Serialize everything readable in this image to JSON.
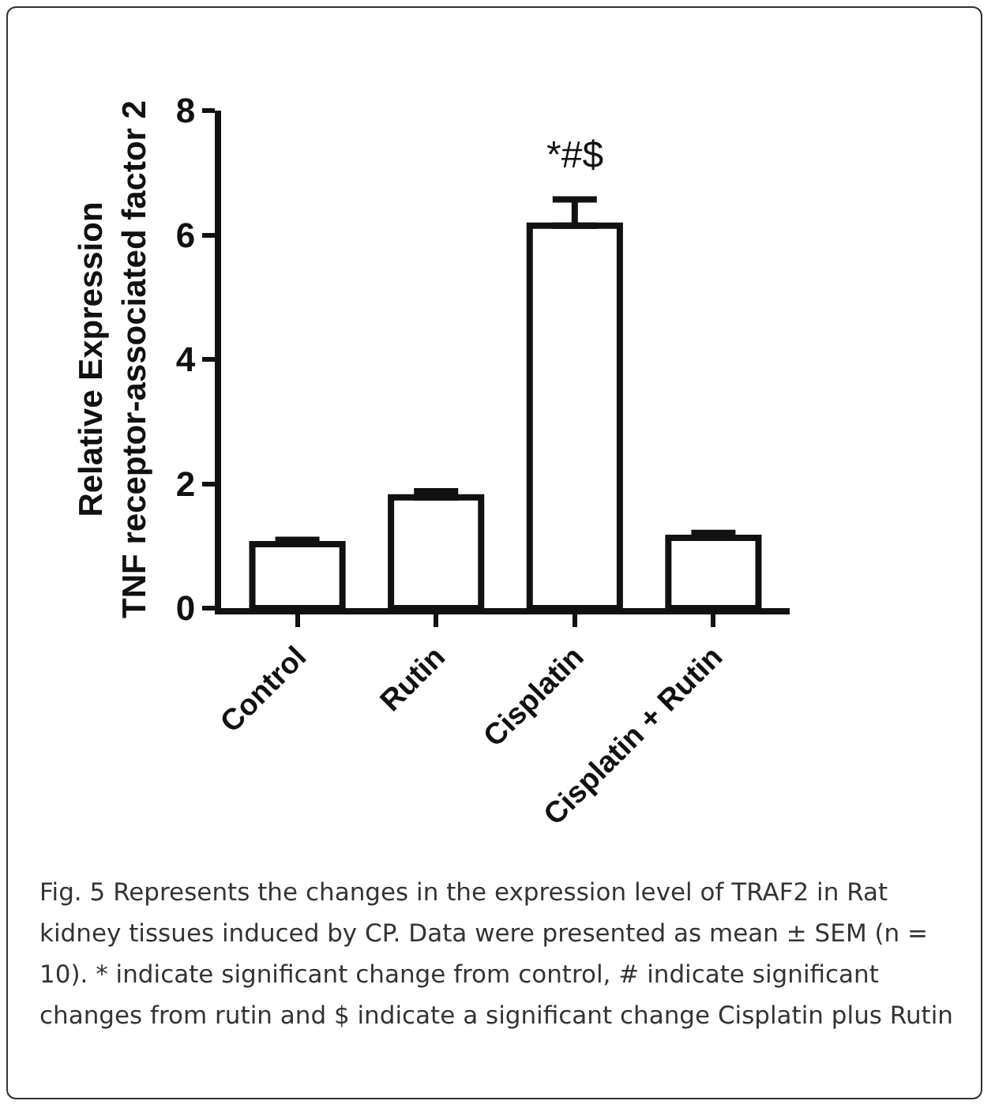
{
  "chart_data": {
    "type": "bar",
    "ylabel": "Relative Expression\nTNF receptor-associated factor 2",
    "categories": [
      "Control",
      "Rutin",
      "Cisplatin",
      "Cisplatin + Rutin"
    ],
    "values": [
      1.03,
      1.78,
      6.15,
      1.13
    ],
    "errors": [
      [
        1.03,
        1.1
      ],
      [
        1.78,
        1.88
      ],
      [
        6.15,
        6.57
      ],
      [
        1.13,
        1.21
      ]
    ],
    "color": "#ffffff",
    "ylim": [
      0,
      8
    ],
    "yticks": [
      0,
      2,
      4,
      6,
      8
    ],
    "grid": false,
    "annotations": [
      {
        "text": "*#$",
        "x": "Cisplatin",
        "y": 6.57
      },
      "Fig. 5 Represents the changes in the expression level of TRAF2 in Rat kidney tissues induced by CP. Data were presented as mean ± SEM (n = 10). * indicate significant change from control, # indicate significant changes from rutin and $ indicate a significant change Cisplatin plus Rutin"
    ]
  }
}
